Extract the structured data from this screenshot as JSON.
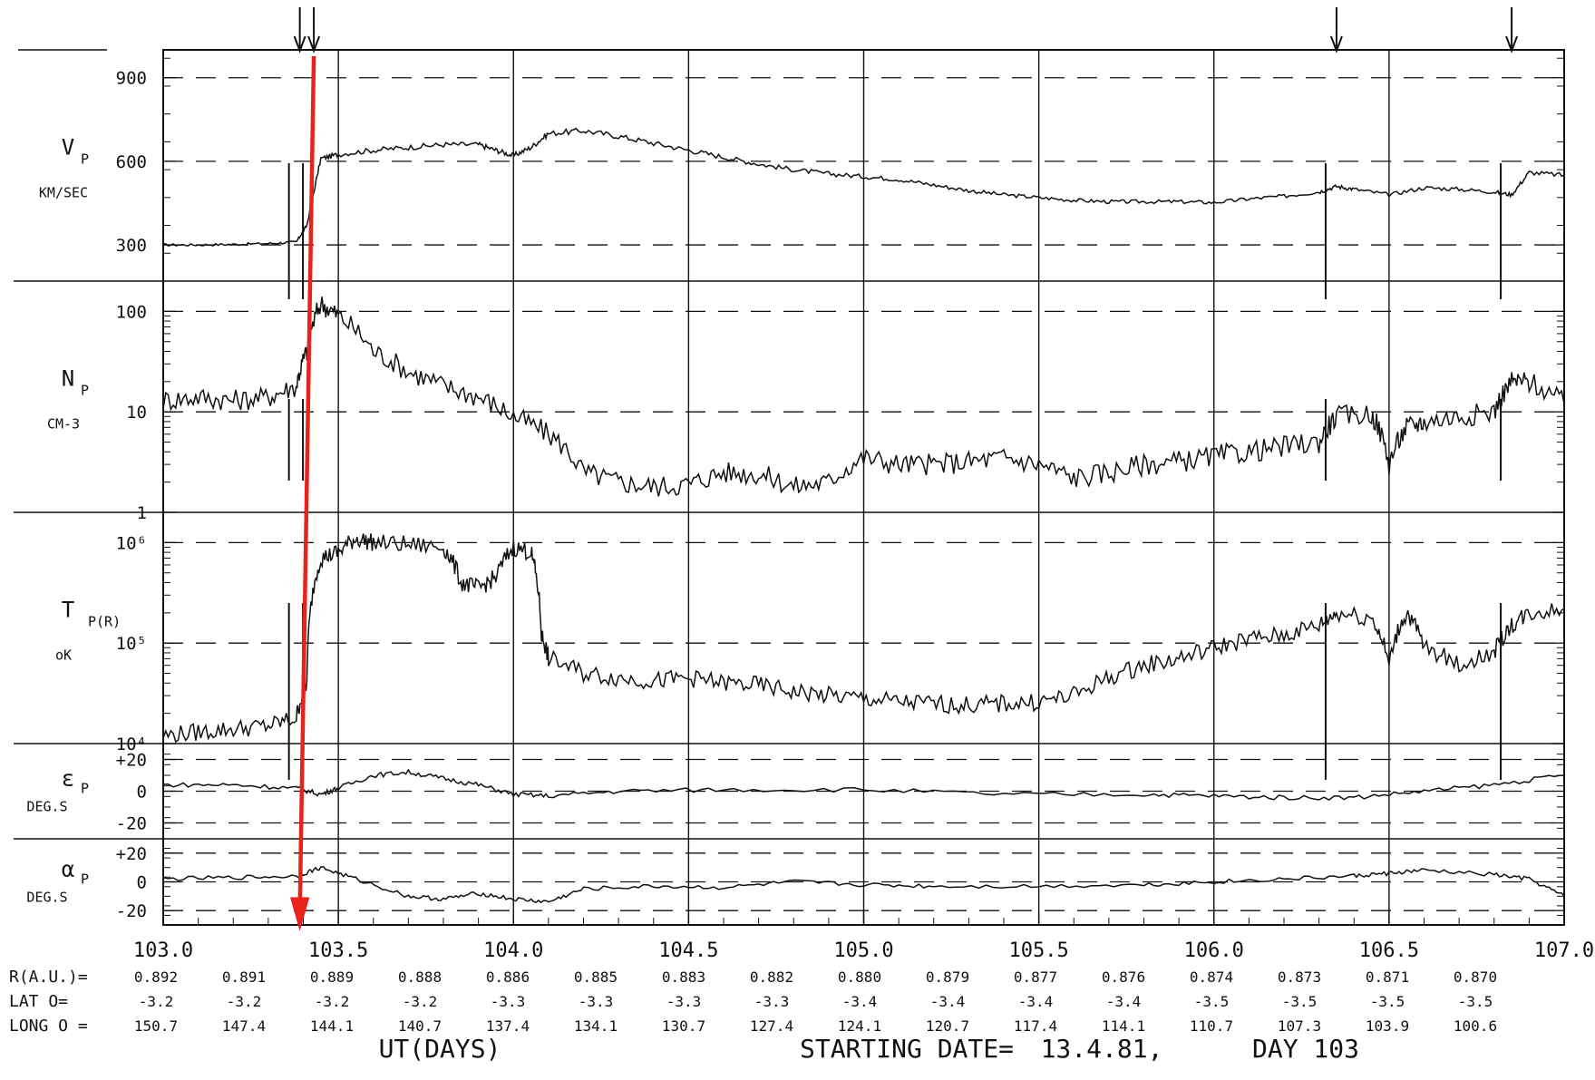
{
  "chart_data": {
    "type": "line",
    "xlabel": "UT(DAYS)",
    "starting_date_label": "STARTING DATE=",
    "starting_date_value": "13.4.81,",
    "day_label": "DAY 103",
    "x_range": [
      103.0,
      107.0
    ],
    "x_ticks": [
      "103.0",
      "103.5",
      "104.0",
      "104.5",
      "105.0",
      "105.5",
      "106.0",
      "106.5",
      "107.0"
    ],
    "event_arrows_x": [
      103.39,
      103.43,
      106.35,
      106.85
    ],
    "annotation": {
      "color": "#e8231c",
      "x_start": 103.43,
      "x_end": 103.39
    },
    "panels": [
      {
        "id": "vp",
        "label_main": "V",
        "label_sub": "P",
        "unit": "KM/SEC",
        "scale": "linear",
        "ylim": [
          170,
          1000
        ],
        "tick_labels": [
          "900",
          "600",
          "300"
        ],
        "tick_values": [
          900,
          600,
          300
        ],
        "minor_ticks": [
          150
        ],
        "series": {
          "x": [
            103.0,
            103.1,
            103.2,
            103.3,
            103.38,
            103.41,
            103.45,
            103.5,
            103.6,
            103.7,
            103.8,
            103.9,
            103.95,
            104.0,
            104.05,
            104.1,
            104.2,
            104.3,
            104.4,
            104.5,
            104.6,
            104.7,
            104.8,
            104.9,
            105.0,
            105.1,
            105.2,
            105.3,
            105.4,
            105.5,
            105.6,
            105.7,
            105.8,
            105.9,
            106.0,
            106.1,
            106.2,
            106.3,
            106.35,
            106.4,
            106.5,
            106.6,
            106.7,
            106.8,
            106.85,
            106.9,
            107.0
          ],
          "y": [
            300,
            300,
            302,
            305,
            310,
            370,
            610,
            625,
            640,
            650,
            660,
            660,
            640,
            620,
            650,
            700,
            710,
            690,
            665,
            640,
            615,
            590,
            570,
            555,
            545,
            535,
            515,
            495,
            480,
            470,
            460,
            455,
            455,
            455,
            452,
            465,
            475,
            490,
            510,
            500,
            480,
            505,
            500,
            490,
            480,
            560,
            550
          ]
        }
      },
      {
        "id": "np",
        "label_main": "N",
        "label_sub": "P",
        "unit": "CM-3",
        "scale": "log",
        "ylim": [
          1,
          200
        ],
        "tick_labels": [
          "100",
          "10",
          "1"
        ],
        "tick_values": [
          100,
          10,
          1
        ],
        "series": {
          "x": [
            103.0,
            103.1,
            103.2,
            103.3,
            103.38,
            103.41,
            103.45,
            103.5,
            103.6,
            103.7,
            103.8,
            103.9,
            104.0,
            104.1,
            104.2,
            104.3,
            104.4,
            104.5,
            104.6,
            104.7,
            104.8,
            104.9,
            105.0,
            105.1,
            105.2,
            105.3,
            105.4,
            105.5,
            105.6,
            105.7,
            105.8,
            105.9,
            106.0,
            106.1,
            106.2,
            106.3,
            106.35,
            106.45,
            106.5,
            106.55,
            106.6,
            106.7,
            106.8,
            106.85,
            106.9,
            107.0
          ],
          "y": [
            13,
            14,
            13,
            14,
            18,
            40,
            120,
            90,
            40,
            25,
            18,
            14,
            9,
            6,
            2.5,
            2.0,
            1.8,
            1.9,
            2.5,
            2.4,
            1.8,
            2.0,
            3.5,
            3.0,
            3.0,
            3.2,
            3.5,
            3.0,
            2.2,
            2.5,
            3.0,
            3.2,
            3.6,
            4.0,
            4.5,
            5.0,
            9.0,
            9.5,
            3.0,
            7.0,
            8.0,
            9.0,
            10.0,
            20.0,
            20.0,
            12.0
          ]
        }
      },
      {
        "id": "tp",
        "label_main": "T",
        "label_sub": "P(R)",
        "unit": "oK",
        "scale": "log",
        "ylim": [
          10000,
          2000000
        ],
        "tick_labels": [
          "10⁶",
          "10⁵",
          "10⁴"
        ],
        "tick_values": [
          1000000,
          100000,
          10000
        ],
        "series": {
          "x": [
            103.0,
            103.1,
            103.2,
            103.3,
            103.38,
            103.41,
            103.45,
            103.5,
            103.55,
            103.6,
            103.7,
            103.8,
            103.85,
            103.9,
            103.95,
            104.0,
            104.05,
            104.08,
            104.1,
            104.2,
            104.3,
            104.4,
            104.5,
            104.6,
            104.7,
            104.8,
            104.9,
            105.0,
            105.1,
            105.2,
            105.3,
            105.4,
            105.5,
            105.6,
            105.7,
            105.8,
            105.9,
            106.0,
            106.1,
            106.2,
            106.3,
            106.35,
            106.45,
            106.5,
            106.55,
            106.6,
            106.7,
            106.8,
            106.85,
            106.9,
            107.0
          ],
          "y": [
            12000,
            13000,
            14000,
            15000,
            18000,
            40000,
            700000,
            800000,
            1100000,
            1000000,
            950000,
            900000,
            400000,
            350000,
            450000,
            900000,
            800000,
            120000,
            70000,
            50000,
            45000,
            42000,
            45000,
            40000,
            38000,
            33000,
            30000,
            28000,
            26000,
            25000,
            24000,
            25000,
            26000,
            30000,
            45000,
            60000,
            70000,
            90000,
            110000,
            120000,
            150000,
            200000,
            180000,
            60000,
            200000,
            90000,
            60000,
            80000,
            150000,
            200000,
            220000
          ]
        }
      },
      {
        "id": "ep",
        "label_main": "ε",
        "label_sub": "P",
        "unit": "DEG.S",
        "scale": "linear",
        "ylim": [
          -30,
          30
        ],
        "tick_labels": [
          "+20",
          "0",
          "-20"
        ],
        "tick_values": [
          20,
          0,
          -20
        ],
        "series": {
          "x": [
            103.0,
            103.2,
            103.38,
            103.45,
            103.5,
            103.6,
            103.7,
            103.8,
            103.9,
            104.0,
            104.1,
            104.3,
            104.6,
            105.0,
            105.4,
            105.8,
            106.0,
            106.2,
            106.4,
            106.6,
            106.8,
            107.0
          ],
          "y": [
            4,
            4,
            2,
            -2,
            2,
            10,
            12,
            8,
            4,
            -2,
            -3,
            0,
            1,
            1,
            -2,
            -2,
            -3,
            -4,
            -4,
            0,
            4,
            10
          ]
        }
      },
      {
        "id": "ap",
        "label_main": "α",
        "label_sub": "P",
        "unit": "DEG.S",
        "scale": "linear",
        "ylim": [
          -30,
          30
        ],
        "tick_labels": [
          "+20",
          "0",
          "-20"
        ],
        "tick_values": [
          20,
          0,
          -20
        ],
        "series": {
          "x": [
            103.0,
            103.2,
            103.38,
            103.45,
            103.55,
            103.7,
            103.8,
            103.9,
            104.0,
            104.1,
            104.2,
            104.4,
            104.6,
            104.8,
            105.0,
            105.2,
            105.5,
            105.8,
            106.0,
            106.2,
            106.4,
            106.5,
            106.6,
            106.8,
            106.9,
            107.0
          ],
          "y": [
            2,
            3,
            4,
            10,
            2,
            -10,
            -12,
            -8,
            -12,
            -14,
            -5,
            -3,
            -4,
            0,
            -2,
            -3,
            -3,
            -2,
            0,
            2,
            4,
            6,
            8,
            5,
            2,
            -10
          ]
        }
      }
    ],
    "ephemeris": {
      "rows": [
        {
          "label": "R(A.U.)=",
          "values": [
            "0.892",
            "0.891",
            "0.889",
            "0.888",
            "0.886",
            "0.885",
            "0.883",
            "0.882",
            "0.880",
            "0.879",
            "0.877",
            "0.876",
            "0.874",
            "0.873",
            "0.871",
            "0.870"
          ]
        },
        {
          "label": "LAT O=",
          "values": [
            "-3.2",
            "-3.2",
            "-3.2",
            "-3.2",
            "-3.3",
            "-3.3",
            "-3.3",
            "-3.3",
            "-3.4",
            "-3.4",
            "-3.4",
            "-3.4",
            "-3.5",
            "-3.5",
            "-3.5",
            "-3.5"
          ]
        },
        {
          "label": "LONG O =",
          "values": [
            "150.7",
            "147.4",
            "144.1",
            "140.7",
            "137.4",
            "134.1",
            "130.7",
            "127.4",
            "124.1",
            "120.7",
            "117.4",
            "114.1",
            "110.7",
            "107.3",
            "103.9",
            "100.6"
          ]
        }
      ]
    }
  }
}
